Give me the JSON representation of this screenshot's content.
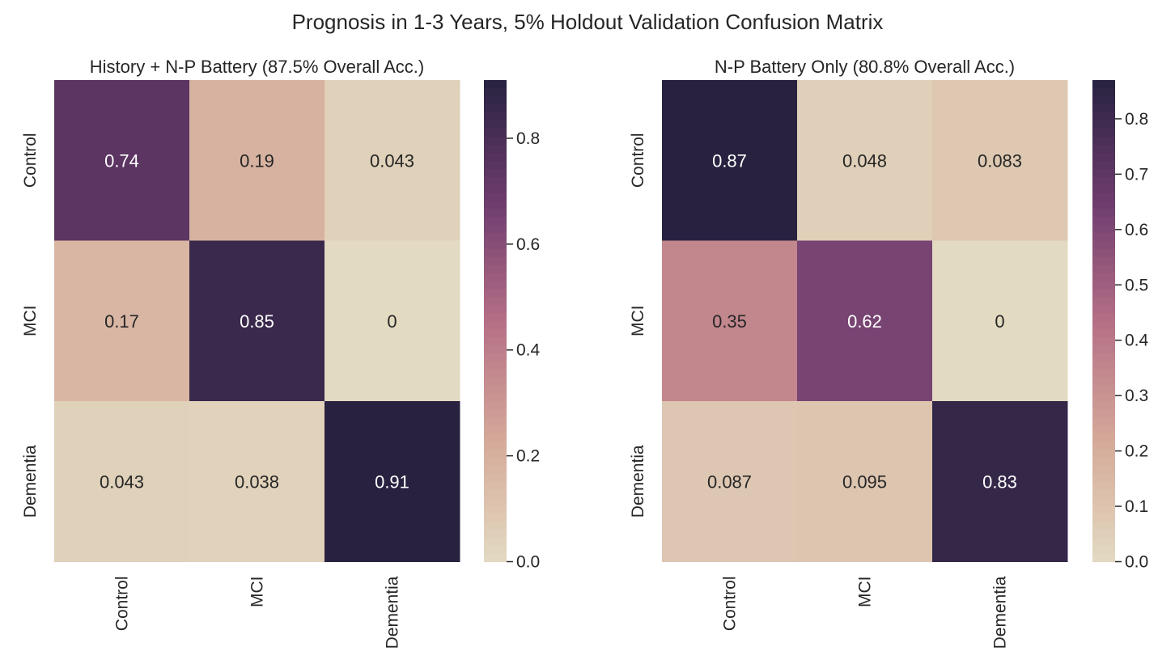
{
  "suptitle": "Prognosis in 1-3 Years, 5% Holdout Validation Confusion Matrix",
  "colormap": {
    "low": "#e3dac2",
    "mid_low": "#d5aa99",
    "mid": "#b56f86",
    "mid_high": "#6d3c6e",
    "high": "#282240"
  },
  "chart_data": [
    {
      "type": "heatmap",
      "title": "History + N-P Battery (87.5% Overall Acc.)",
      "row_labels": [
        "Control",
        "MCI",
        "Dementia"
      ],
      "col_labels": [
        "Control",
        "MCI",
        "Dementia"
      ],
      "values": [
        [
          0.74,
          0.19,
          0.043
        ],
        [
          0.17,
          0.85,
          0
        ],
        [
          0.043,
          0.038,
          0.91
        ]
      ],
      "cell_text": [
        [
          "0.74",
          "0.19",
          "0.043"
        ],
        [
          "0.17",
          "0.85",
          "0"
        ],
        [
          "0.043",
          "0.038",
          "0.91"
        ]
      ],
      "vmin": 0,
      "vmax": 0.91,
      "colorbar_ticks": [
        "0.0",
        "0.2",
        "0.4",
        "0.6",
        "0.8"
      ]
    },
    {
      "type": "heatmap",
      "title": "N-P Battery Only (80.8% Overall Acc.)",
      "row_labels": [
        "Control",
        "MCI",
        "Dementia"
      ],
      "col_labels": [
        "Control",
        "MCI",
        "Dementia"
      ],
      "values": [
        [
          0.87,
          0.048,
          0.083
        ],
        [
          0.35,
          0.62,
          0
        ],
        [
          0.087,
          0.095,
          0.83
        ]
      ],
      "cell_text": [
        [
          "0.87",
          "0.048",
          "0.083"
        ],
        [
          "0.35",
          "0.62",
          "0"
        ],
        [
          "0.087",
          "0.095",
          "0.83"
        ]
      ],
      "vmin": 0,
      "vmax": 0.87,
      "colorbar_ticks": [
        "0.0",
        "0.1",
        "0.2",
        "0.3",
        "0.4",
        "0.5",
        "0.6",
        "0.7",
        "0.8"
      ]
    }
  ]
}
